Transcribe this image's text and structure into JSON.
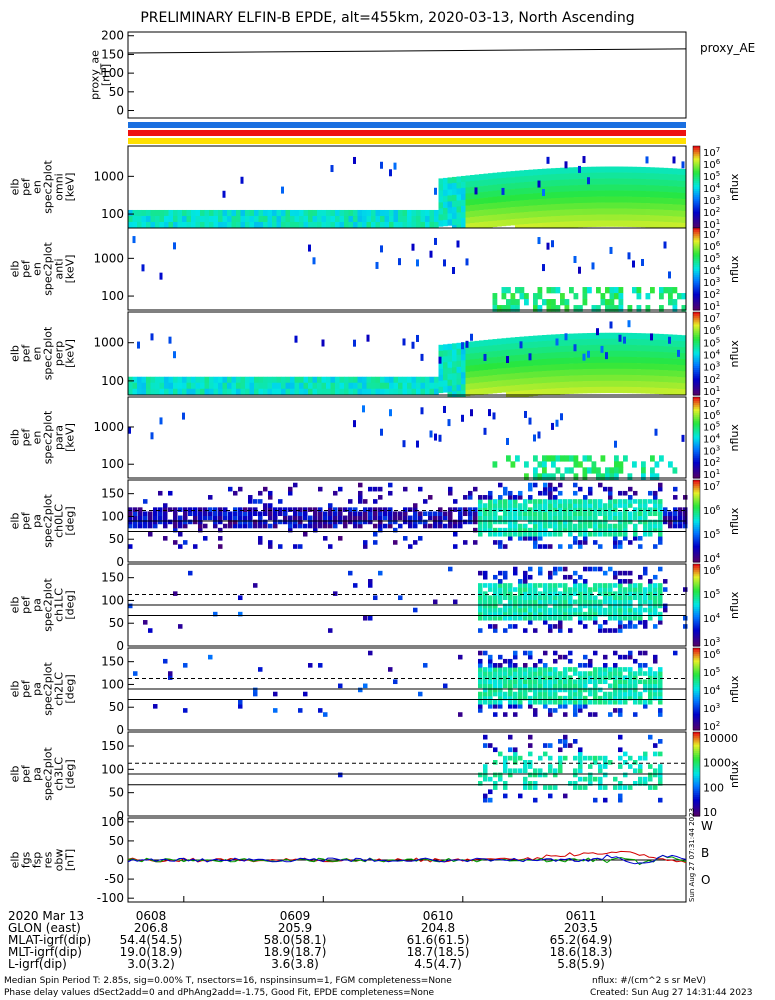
{
  "title": "PRELIMINARY ELFIN-B EPDE, alt=455km, 2020-03-13, North Ascending",
  "chart_data": [
    {
      "type": "line",
      "ylabel": "proxy_ae [nT]",
      "legend": "proxy_AE",
      "ylim": [
        -20,
        210
      ],
      "yticks": [
        "200",
        "150",
        "100",
        "50",
        "0"
      ],
      "series": [
        {
          "name": "proxy_AE",
          "color": "#000000",
          "x": [
            0,
            1
          ],
          "values": [
            154,
            165
          ]
        }
      ]
    },
    {
      "type": "heatmap",
      "ylabel": "elb pef en spec2plot omni [keV]",
      "yticks": [
        "1000",
        "100"
      ],
      "colorbar": {
        "label": "nflux",
        "ticks": [
          "10^7",
          "10^6",
          "10^5",
          "10^4",
          "10^3",
          "10^2",
          "10^1"
        ]
      }
    },
    {
      "type": "heatmap",
      "ylabel": "elb pef en spec2plot anti [keV]",
      "yticks": [
        "1000",
        "100"
      ],
      "colorbar": {
        "label": "nflux",
        "ticks": [
          "10^7",
          "10^6",
          "10^5",
          "10^4",
          "10^3",
          "10^2",
          "10^1"
        ]
      }
    },
    {
      "type": "heatmap",
      "ylabel": "elb pef en spec2plot perp [keV]",
      "yticks": [
        "1000",
        "100"
      ],
      "colorbar": {
        "label": "nflux",
        "ticks": [
          "10^7",
          "10^6",
          "10^5",
          "10^4",
          "10^3",
          "10^2",
          "10^1"
        ]
      }
    },
    {
      "type": "heatmap",
      "ylabel": "elb pef en spec2plot para [keV]",
      "yticks": [
        "1000",
        "100"
      ],
      "colorbar": {
        "label": "nflux",
        "ticks": [
          "10^7",
          "10^6",
          "10^5",
          "10^4",
          "10^3",
          "10^2",
          "10^1"
        ]
      }
    },
    {
      "type": "heatmap",
      "ylabel": "elb pef pa spec2plot ch0LC [deg]",
      "yticks": [
        "150",
        "100",
        "50",
        "0"
      ],
      "ylim": [
        0,
        180
      ],
      "colorbar": {
        "label": "nflux",
        "ticks": [
          "10^7",
          "10^6",
          "10^5",
          "10^4"
        ]
      }
    },
    {
      "type": "heatmap",
      "ylabel": "elb pef pa spec2plot ch1LC [deg]",
      "yticks": [
        "150",
        "100",
        "50",
        "0"
      ],
      "ylim": [
        0,
        180
      ],
      "colorbar": {
        "label": "nflux",
        "ticks": [
          "10^6",
          "10^5",
          "10^4",
          "10^3"
        ]
      }
    },
    {
      "type": "heatmap",
      "ylabel": "elb pef pa spec2plot ch2LC [deg]",
      "yticks": [
        "150",
        "100",
        "50",
        "0"
      ],
      "ylim": [
        0,
        180
      ],
      "colorbar": {
        "label": "nflux",
        "ticks": [
          "10^6",
          "10^5",
          "10^4",
          "10^3",
          "10^2"
        ]
      }
    },
    {
      "type": "heatmap",
      "ylabel": "elb pef pa spec2plot ch3LC [deg]",
      "yticks": [
        "150",
        "100",
        "50",
        "0"
      ],
      "ylim": [
        0,
        180
      ],
      "colorbar": {
        "label": "nflux",
        "ticks": [
          "10000",
          "1000",
          "100",
          "10"
        ]
      }
    },
    {
      "type": "line",
      "ylabel": "elb fgs fsp res obw [nT]",
      "yticks": [
        "100",
        "50",
        "0",
        "-50",
        "-100"
      ],
      "ylim": [
        -110,
        110
      ],
      "legend": [
        "W",
        "B",
        "O"
      ],
      "series": [
        {
          "name": "W",
          "color": "#d40000"
        },
        {
          "name": "B",
          "color": "#00a000"
        },
        {
          "name": "O",
          "color": "#0000d0"
        }
      ]
    }
  ],
  "side_stamp": "Sun Aug 27 07:31:44 2023",
  "ephemeris": {
    "labels": [
      "2020 Mar 13",
      "GLON (east)",
      "MLAT-igrf(dip)",
      "MLT-igrf(dip)",
      "L-igrf(dip)"
    ],
    "columns": [
      [
        "0608",
        "206.8",
        "54.4(54.5)",
        "19.0(18.9)",
        "3.0(3.2)"
      ],
      [
        "0609",
        "205.9",
        "58.0(58.1)",
        "18.9(18.7)",
        "3.6(3.8)"
      ],
      [
        "0610",
        "204.8",
        "61.6(61.5)",
        "18.7(18.5)",
        "4.5(4.7)"
      ],
      [
        "0611",
        "203.5",
        "65.2(64.9)",
        "18.6(18.3)",
        "5.8(5.9)"
      ]
    ]
  },
  "footer": {
    "line1": "Median Spin Period T: 2.85s, sig=0.00% T, nsectors=16, nspinsinsum=1, FGM completeness=None",
    "line2": "Phase delay values dSect2add=0 and dPhAng2add=-1.75, Good Fit, EPDE completeness=None",
    "units": "nflux: #/(cm^2 s sr MeV)",
    "created": "Created: Sun Aug 27 14:31:44 2023"
  },
  "colors": {
    "bar_blue": "#1a6fe0",
    "bar_red": "#ee1111",
    "bar_yellow": "#ffe000"
  }
}
